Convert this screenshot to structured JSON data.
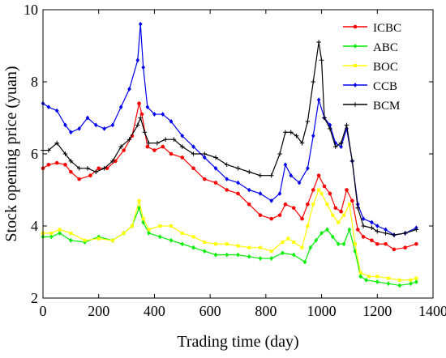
{
  "chart_data": {
    "type": "line",
    "title": "",
    "xlabel": "Trading time (day)",
    "ylabel": "Stock opening price (yuan)",
    "xlim": [
      0,
      1400
    ],
    "ylim": [
      2,
      10
    ],
    "xticks": [
      0,
      200,
      400,
      600,
      800,
      1000,
      1200,
      1400
    ],
    "yticks": [
      2,
      4,
      6,
      8,
      10
    ],
    "xtick_labels": [
      "0",
      "200",
      "400",
      "600",
      "800",
      "1000",
      "1200",
      "1400"
    ],
    "ytick_labels": [
      "2",
      "4",
      "6",
      "8",
      "10"
    ],
    "grid": false,
    "legend_position": "top-right",
    "series": [
      {
        "name": "ICBC",
        "color": "#ff0000",
        "marker": "circle",
        "points": [
          [
            0,
            5.6
          ],
          [
            20,
            5.7
          ],
          [
            50,
            5.75
          ],
          [
            80,
            5.7
          ],
          [
            100,
            5.5
          ],
          [
            130,
            5.3
          ],
          [
            170,
            5.4
          ],
          [
            200,
            5.6
          ],
          [
            230,
            5.6
          ],
          [
            260,
            5.8
          ],
          [
            290,
            6.1
          ],
          [
            320,
            6.5
          ],
          [
            345,
            7.4
          ],
          [
            355,
            7.1
          ],
          [
            375,
            6.2
          ],
          [
            400,
            6.1
          ],
          [
            430,
            6.2
          ],
          [
            460,
            6.0
          ],
          [
            500,
            5.9
          ],
          [
            540,
            5.6
          ],
          [
            580,
            5.3
          ],
          [
            620,
            5.2
          ],
          [
            660,
            5.0
          ],
          [
            700,
            4.9
          ],
          [
            740,
            4.6
          ],
          [
            780,
            4.3
          ],
          [
            820,
            4.2
          ],
          [
            850,
            4.3
          ],
          [
            870,
            4.6
          ],
          [
            900,
            4.5
          ],
          [
            930,
            4.2
          ],
          [
            950,
            4.6
          ],
          [
            970,
            5.0
          ],
          [
            990,
            5.4
          ],
          [
            1010,
            5.1
          ],
          [
            1030,
            4.9
          ],
          [
            1050,
            4.5
          ],
          [
            1070,
            4.4
          ],
          [
            1090,
            5.0
          ],
          [
            1110,
            4.7
          ],
          [
            1130,
            3.9
          ],
          [
            1150,
            3.7
          ],
          [
            1180,
            3.6
          ],
          [
            1200,
            3.5
          ],
          [
            1230,
            3.5
          ],
          [
            1260,
            3.35
          ],
          [
            1300,
            3.4
          ],
          [
            1340,
            3.5
          ]
        ]
      },
      {
        "name": "ABC",
        "color": "#00ee00",
        "marker": "diamond",
        "points": [
          [
            0,
            3.7
          ],
          [
            30,
            3.7
          ],
          [
            60,
            3.8
          ],
          [
            100,
            3.6
          ],
          [
            150,
            3.55
          ],
          [
            200,
            3.7
          ],
          [
            250,
            3.6
          ],
          [
            290,
            3.8
          ],
          [
            320,
            4.0
          ],
          [
            345,
            4.5
          ],
          [
            360,
            4.1
          ],
          [
            380,
            3.8
          ],
          [
            420,
            3.7
          ],
          [
            460,
            3.6
          ],
          [
            500,
            3.5
          ],
          [
            540,
            3.4
          ],
          [
            580,
            3.3
          ],
          [
            620,
            3.2
          ],
          [
            660,
            3.2
          ],
          [
            700,
            3.2
          ],
          [
            740,
            3.15
          ],
          [
            780,
            3.1
          ],
          [
            820,
            3.1
          ],
          [
            860,
            3.25
          ],
          [
            900,
            3.2
          ],
          [
            940,
            3.0
          ],
          [
            960,
            3.4
          ],
          [
            980,
            3.6
          ],
          [
            1000,
            3.8
          ],
          [
            1020,
            3.9
          ],
          [
            1040,
            3.7
          ],
          [
            1060,
            3.5
          ],
          [
            1080,
            3.5
          ],
          [
            1100,
            3.9
          ],
          [
            1120,
            3.3
          ],
          [
            1140,
            2.6
          ],
          [
            1160,
            2.5
          ],
          [
            1200,
            2.45
          ],
          [
            1240,
            2.4
          ],
          [
            1280,
            2.35
          ],
          [
            1320,
            2.4
          ],
          [
            1340,
            2.45
          ]
        ]
      },
      {
        "name": "BOC",
        "color": "#ffff00",
        "marker": "square",
        "points": [
          [
            0,
            3.8
          ],
          [
            30,
            3.8
          ],
          [
            60,
            3.9
          ],
          [
            100,
            3.8
          ],
          [
            150,
            3.6
          ],
          [
            200,
            3.65
          ],
          [
            250,
            3.6
          ],
          [
            290,
            3.8
          ],
          [
            320,
            4.0
          ],
          [
            345,
            4.7
          ],
          [
            360,
            4.2
          ],
          [
            380,
            3.9
          ],
          [
            420,
            4.0
          ],
          [
            460,
            4.0
          ],
          [
            500,
            3.8
          ],
          [
            540,
            3.7
          ],
          [
            580,
            3.55
          ],
          [
            620,
            3.5
          ],
          [
            660,
            3.5
          ],
          [
            700,
            3.45
          ],
          [
            740,
            3.4
          ],
          [
            780,
            3.4
          ],
          [
            820,
            3.3
          ],
          [
            860,
            3.55
          ],
          [
            880,
            3.65
          ],
          [
            900,
            3.55
          ],
          [
            930,
            3.4
          ],
          [
            950,
            4.0
          ],
          [
            970,
            4.6
          ],
          [
            990,
            5.0
          ],
          [
            1000,
            4.9
          ],
          [
            1020,
            4.6
          ],
          [
            1040,
            4.3
          ],
          [
            1060,
            4.1
          ],
          [
            1080,
            4.3
          ],
          [
            1100,
            4.6
          ],
          [
            1120,
            3.5
          ],
          [
            1140,
            2.7
          ],
          [
            1170,
            2.6
          ],
          [
            1200,
            2.6
          ],
          [
            1240,
            2.55
          ],
          [
            1280,
            2.5
          ],
          [
            1320,
            2.5
          ],
          [
            1340,
            2.55
          ]
        ]
      },
      {
        "name": "CCB",
        "color": "#0000ee",
        "marker": "diamond",
        "points": [
          [
            0,
            7.4
          ],
          [
            20,
            7.3
          ],
          [
            50,
            7.2
          ],
          [
            80,
            6.8
          ],
          [
            100,
            6.6
          ],
          [
            130,
            6.7
          ],
          [
            160,
            7.0
          ],
          [
            190,
            6.8
          ],
          [
            220,
            6.7
          ],
          [
            250,
            6.8
          ],
          [
            280,
            7.3
          ],
          [
            310,
            7.8
          ],
          [
            340,
            8.6
          ],
          [
            350,
            9.6
          ],
          [
            360,
            8.4
          ],
          [
            375,
            7.3
          ],
          [
            400,
            7.1
          ],
          [
            430,
            7.1
          ],
          [
            460,
            6.9
          ],
          [
            500,
            6.5
          ],
          [
            540,
            6.2
          ],
          [
            580,
            5.9
          ],
          [
            620,
            5.6
          ],
          [
            660,
            5.3
          ],
          [
            700,
            5.2
          ],
          [
            740,
            5.0
          ],
          [
            780,
            4.9
          ],
          [
            820,
            4.7
          ],
          [
            850,
            4.9
          ],
          [
            870,
            5.7
          ],
          [
            890,
            5.4
          ],
          [
            920,
            5.2
          ],
          [
            950,
            5.6
          ],
          [
            970,
            6.5
          ],
          [
            990,
            7.5
          ],
          [
            1010,
            7.0
          ],
          [
            1030,
            6.8
          ],
          [
            1050,
            6.3
          ],
          [
            1070,
            6.2
          ],
          [
            1090,
            6.7
          ],
          [
            1110,
            5.8
          ],
          [
            1130,
            4.6
          ],
          [
            1150,
            4.2
          ],
          [
            1180,
            4.1
          ],
          [
            1200,
            4.0
          ],
          [
            1230,
            3.9
          ],
          [
            1260,
            3.75
          ],
          [
            1300,
            3.8
          ],
          [
            1340,
            3.95
          ]
        ]
      },
      {
        "name": "BCM",
        "color": "#000000",
        "marker": "plus",
        "points": [
          [
            0,
            6.1
          ],
          [
            20,
            6.1
          ],
          [
            50,
            6.3
          ],
          [
            80,
            6.0
          ],
          [
            100,
            5.8
          ],
          [
            130,
            5.6
          ],
          [
            160,
            5.6
          ],
          [
            190,
            5.5
          ],
          [
            220,
            5.6
          ],
          [
            250,
            5.8
          ],
          [
            280,
            6.2
          ],
          [
            310,
            6.4
          ],
          [
            340,
            6.8
          ],
          [
            350,
            7.0
          ],
          [
            365,
            6.6
          ],
          [
            380,
            6.3
          ],
          [
            410,
            6.3
          ],
          [
            440,
            6.4
          ],
          [
            470,
            6.4
          ],
          [
            500,
            6.2
          ],
          [
            540,
            6.0
          ],
          [
            580,
            6.0
          ],
          [
            620,
            5.9
          ],
          [
            660,
            5.7
          ],
          [
            700,
            5.6
          ],
          [
            740,
            5.5
          ],
          [
            780,
            5.4
          ],
          [
            820,
            5.4
          ],
          [
            850,
            6.0
          ],
          [
            870,
            6.6
          ],
          [
            890,
            6.6
          ],
          [
            910,
            6.5
          ],
          [
            930,
            6.3
          ],
          [
            950,
            6.9
          ],
          [
            970,
            8.0
          ],
          [
            990,
            9.1
          ],
          [
            1000,
            8.6
          ],
          [
            1010,
            7.0
          ],
          [
            1030,
            6.7
          ],
          [
            1050,
            6.2
          ],
          [
            1070,
            6.3
          ],
          [
            1090,
            6.8
          ],
          [
            1110,
            5.8
          ],
          [
            1130,
            4.5
          ],
          [
            1150,
            4.0
          ],
          [
            1180,
            3.95
          ],
          [
            1200,
            3.85
          ],
          [
            1230,
            3.8
          ],
          [
            1260,
            3.75
          ],
          [
            1300,
            3.8
          ],
          [
            1340,
            3.9
          ]
        ]
      }
    ]
  }
}
